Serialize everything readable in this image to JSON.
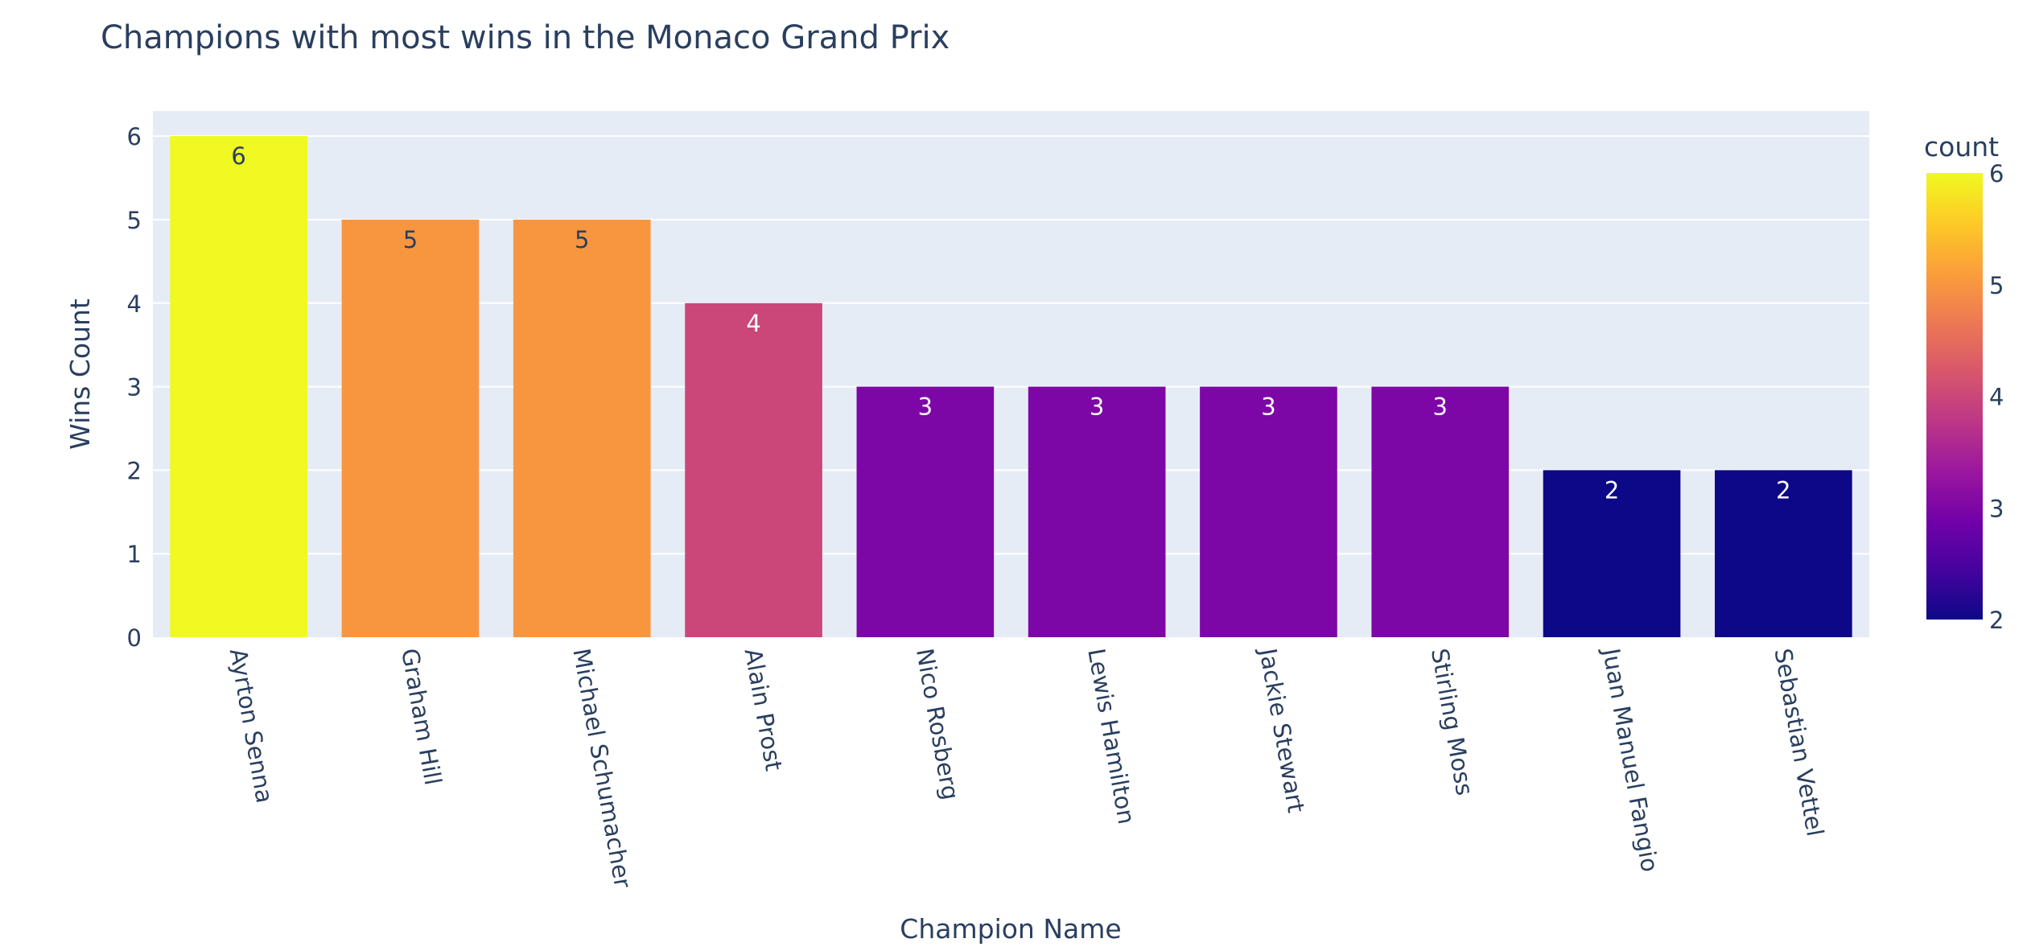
{
  "chart_data": {
    "type": "bar",
    "title": "Champions with most wins in the Monaco Grand Prix",
    "xlabel": "Champion Name",
    "ylabel": "Wins Count",
    "categories": [
      "Ayrton Senna",
      "Graham Hill",
      "Michael Schumacher",
      "Alain Prost",
      "Nico Rosberg",
      "Lewis Hamilton",
      "Jackie Stewart",
      "Stirling Moss",
      "Juan Manuel Fangio",
      "Sebastian Vettel"
    ],
    "values": [
      6,
      5,
      5,
      4,
      3,
      3,
      3,
      3,
      2,
      2
    ],
    "ylim": [
      0,
      6.3
    ],
    "yticks": [
      0,
      1,
      2,
      3,
      4,
      5,
      6
    ],
    "grid": true,
    "colorbar": {
      "title": "count",
      "range": [
        2,
        6
      ],
      "ticks": [
        2,
        3,
        4,
        5,
        6
      ],
      "colorscale": [
        "#0d0887",
        "#46039f",
        "#7201a8",
        "#9c179e",
        "#bd3786",
        "#d8576b",
        "#ed7953",
        "#fb9f3a",
        "#fdca26",
        "#f0f921"
      ]
    },
    "colors": {
      "plot_bg": "#e5ecf6",
      "grid": "#ffffff",
      "text": "#2a3f5f"
    }
  }
}
